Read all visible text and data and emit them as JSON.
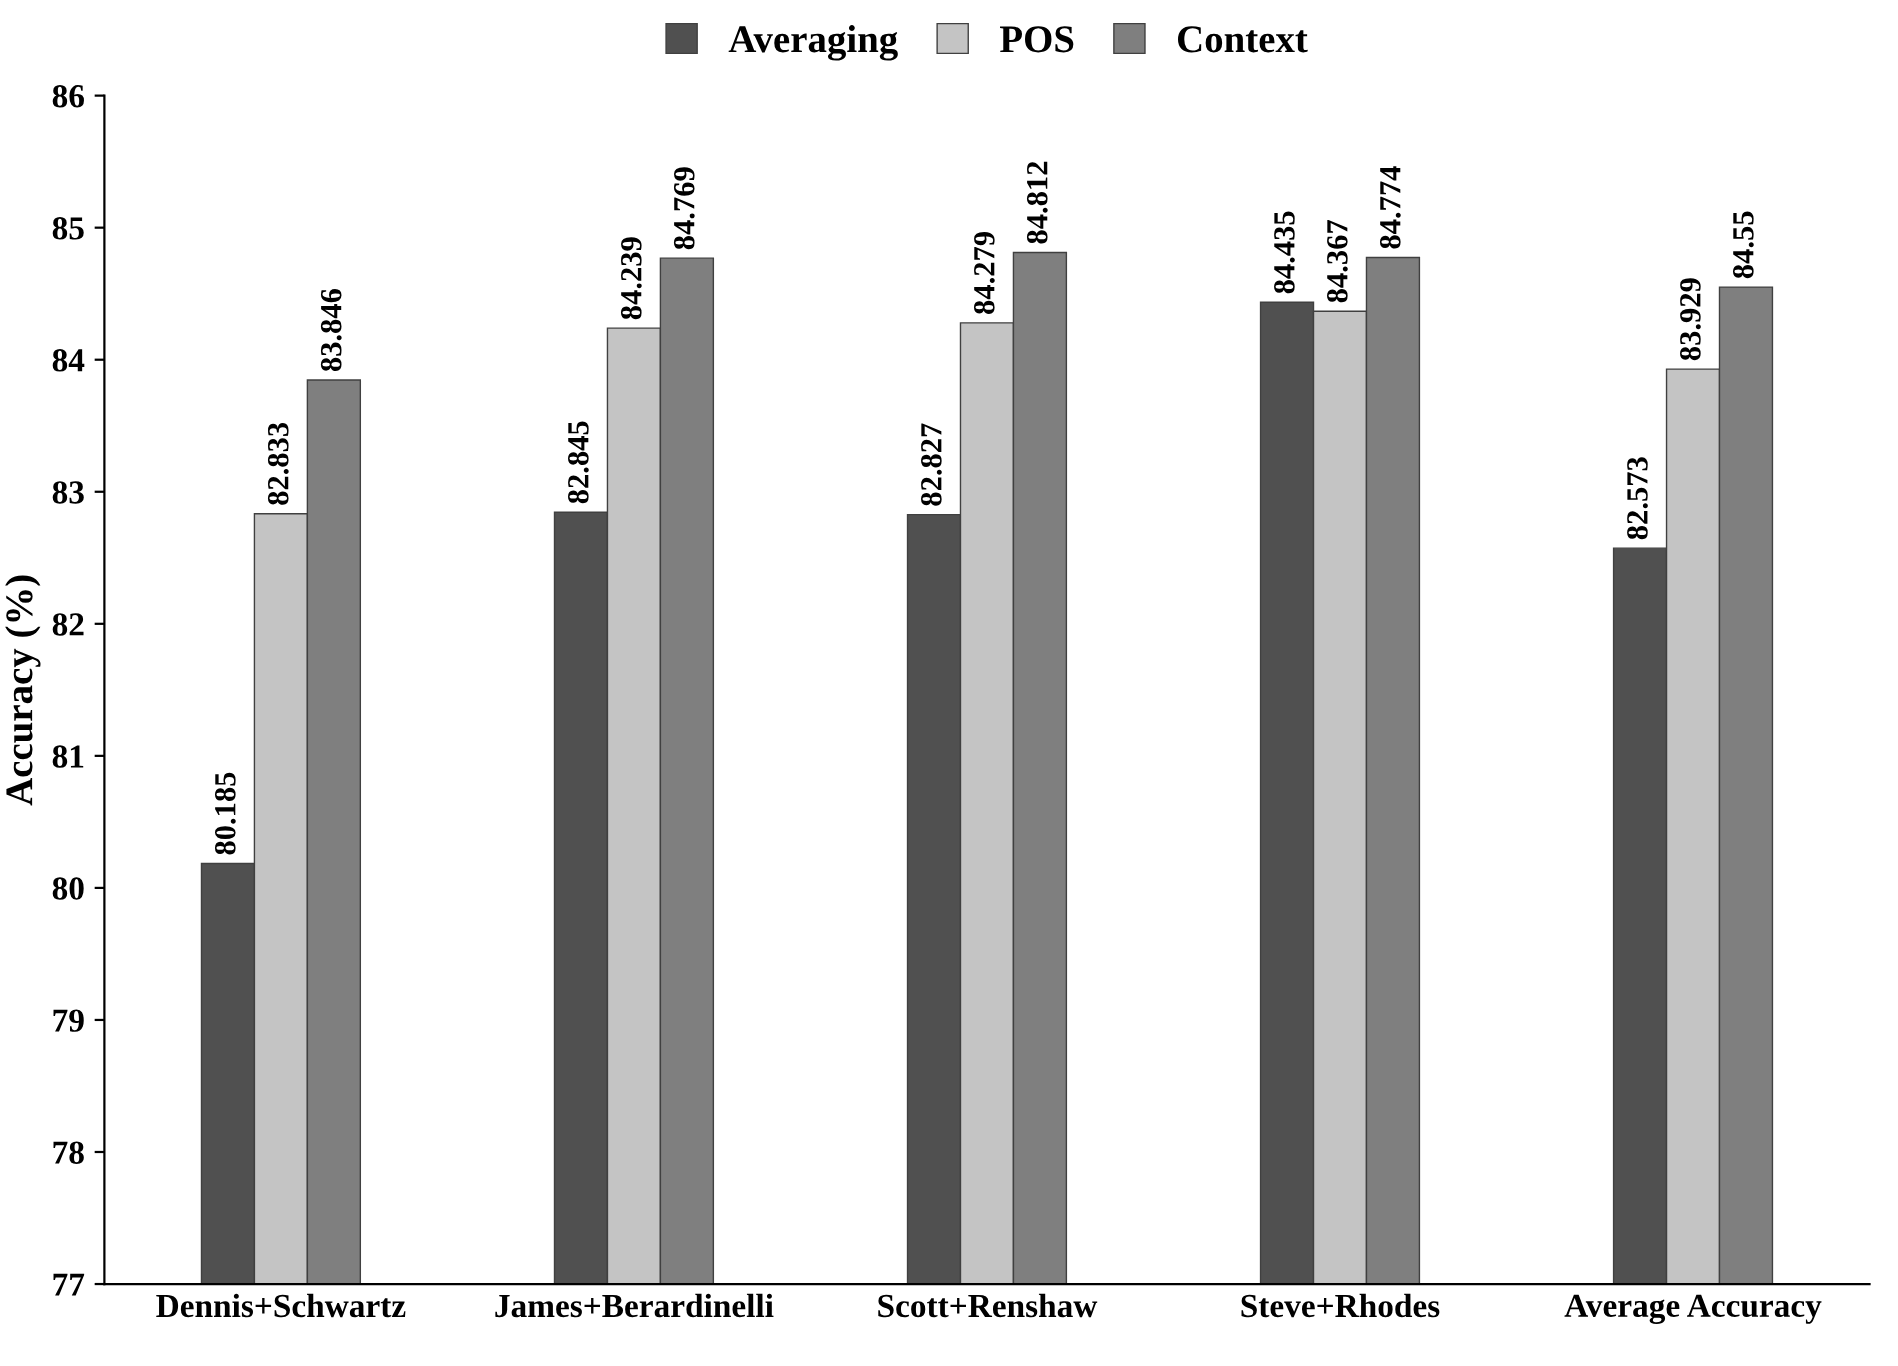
{
  "chart_data": {
    "type": "bar",
    "ylabel": "Accuracy (%)",
    "categories": [
      "Dennis+Schwartz",
      "James+Berardinelli",
      "Scott+Renshaw",
      "Steve+Rhodes",
      "Average Accuracy"
    ],
    "series": [
      {
        "name": "Averaging",
        "color": "#505050",
        "values": [
          80.185,
          82.845,
          82.827,
          84.435,
          82.573
        ]
      },
      {
        "name": "POS",
        "color": "#c4c4c4",
        "values": [
          82.833,
          84.239,
          84.279,
          84.367,
          83.929
        ]
      },
      {
        "name": "Context",
        "color": "#7f7f7f",
        "values": [
          83.846,
          84.769,
          84.812,
          84.774,
          84.55
        ]
      }
    ],
    "ylim": [
      77,
      86
    ],
    "yticks": [
      77,
      78,
      79,
      80,
      81,
      82,
      83,
      84,
      85,
      86
    ],
    "data_labels": true,
    "legend": "top",
    "grid": false
  }
}
